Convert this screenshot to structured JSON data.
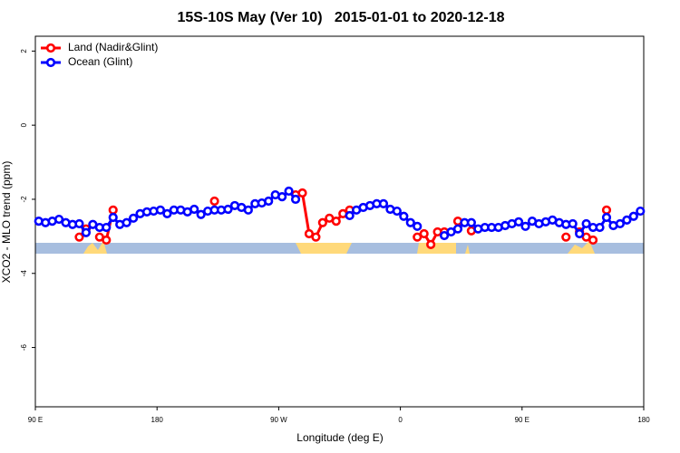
{
  "chart_data": {
    "type": "line",
    "title": "15S-10S May (Ver 10)   2015-01-01 to 2020-12-18",
    "x_label": "Longitude (deg E)",
    "y_label": "XCO2 - MLO trend (ppm)",
    "xlim": [
      90,
      540
    ],
    "ylim": [
      -7.6,
      2.4
    ],
    "xticks": [
      {
        "value": 90,
        "label": "90 E"
      },
      180,
      {
        "value": 270,
        "label": "90 W"
      },
      {
        "value": 360,
        "label": "0"
      },
      {
        "value": 450,
        "label": "90 E"
      },
      {
        "value": 540,
        "label": "180"
      }
    ],
    "yticks": [
      2,
      0,
      -2,
      -4,
      -6
    ],
    "legend": "top-left",
    "x": [
      92.5,
      97.5,
      102.5,
      107.5,
      112.5,
      117.5,
      122.5,
      127.5,
      132.5,
      137.5,
      142.5,
      147.5,
      152.5,
      157.5,
      162.5,
      167.5,
      172.5,
      177.5,
      182.5,
      187.5,
      192.5,
      197.5,
      202.5,
      207.5,
      212.5,
      217.5,
      222.5,
      227.5,
      232.5,
      237.5,
      242.5,
      247.5,
      252.5,
      257.5,
      262.5,
      267.5,
      272.5,
      277.5,
      282.5,
      287.5,
      292.5,
      297.5,
      302.5,
      307.5,
      312.5,
      317.5,
      322.5,
      327.5,
      332.5,
      337.5,
      342.5,
      347.5,
      352.5,
      357.5,
      362.5,
      367.5,
      372.5,
      377.5,
      382.5,
      387.5,
      392.5,
      397.5,
      402.5,
      407.5,
      412.5,
      417.5,
      422.5,
      427.5,
      432.5,
      437.5,
      442.5,
      447.5,
      452.5,
      457.5,
      462.5,
      467.5,
      472.5,
      477.5,
      482.5,
      487.5,
      492.5,
      497.5,
      502.5,
      507.5,
      512.5,
      517.5,
      522.5,
      527.5,
      532.5,
      537.5
    ],
    "series": [
      {
        "name": "Land (Nadir&Glint)",
        "color": "#ff0000",
        "values": [
          null,
          null,
          null,
          null,
          null,
          null,
          -3.02,
          -2.8,
          null,
          -3.02,
          -3.1,
          -2.29,
          null,
          null,
          null,
          null,
          null,
          null,
          null,
          null,
          null,
          null,
          null,
          null,
          null,
          null,
          -2.05,
          null,
          null,
          null,
          null,
          null,
          null,
          null,
          null,
          null,
          null,
          null,
          -1.88,
          -1.83,
          -2.93,
          -3.02,
          -2.63,
          -2.51,
          -2.59,
          -2.39,
          -2.29,
          null,
          null,
          null,
          null,
          null,
          null,
          null,
          null,
          null,
          -3.02,
          -2.93,
          -3.22,
          -2.88,
          -2.88,
          null,
          -2.59,
          null,
          -2.85,
          null,
          null,
          null,
          null,
          null,
          null,
          null,
          null,
          null,
          null,
          null,
          null,
          null,
          -3.02,
          null,
          -2.88,
          -3.02,
          -3.1,
          null,
          -2.29,
          null,
          null,
          null,
          null,
          null
        ]
      },
      {
        "name": "Ocean (Glint)",
        "color": "#0000ff",
        "values": [
          -2.59,
          -2.63,
          -2.59,
          -2.54,
          -2.63,
          -2.68,
          -2.66,
          -2.9,
          -2.68,
          -2.76,
          -2.76,
          -2.49,
          -2.68,
          -2.63,
          -2.51,
          -2.39,
          -2.34,
          -2.32,
          -2.29,
          -2.39,
          -2.29,
          -2.29,
          -2.34,
          -2.27,
          -2.41,
          -2.32,
          -2.29,
          -2.29,
          -2.27,
          -2.17,
          -2.22,
          -2.29,
          -2.12,
          -2.1,
          -2.05,
          -1.88,
          -1.93,
          -1.78,
          -2.0,
          null,
          null,
          null,
          null,
          null,
          null,
          null,
          -2.44,
          -2.29,
          -2.22,
          -2.17,
          -2.12,
          -2.12,
          -2.27,
          -2.32,
          -2.46,
          -2.63,
          -2.73,
          null,
          null,
          null,
          -2.98,
          -2.88,
          -2.8,
          -2.63,
          -2.63,
          -2.8,
          -2.76,
          -2.76,
          -2.76,
          -2.71,
          -2.66,
          -2.61,
          -2.73,
          -2.59,
          -2.66,
          -2.61,
          -2.56,
          -2.63,
          -2.68,
          -2.66,
          -2.93,
          -2.66,
          -2.76,
          -2.76,
          -2.49,
          -2.71,
          -2.66,
          -2.56,
          -2.46,
          -2.32
        ]
      }
    ]
  }
}
